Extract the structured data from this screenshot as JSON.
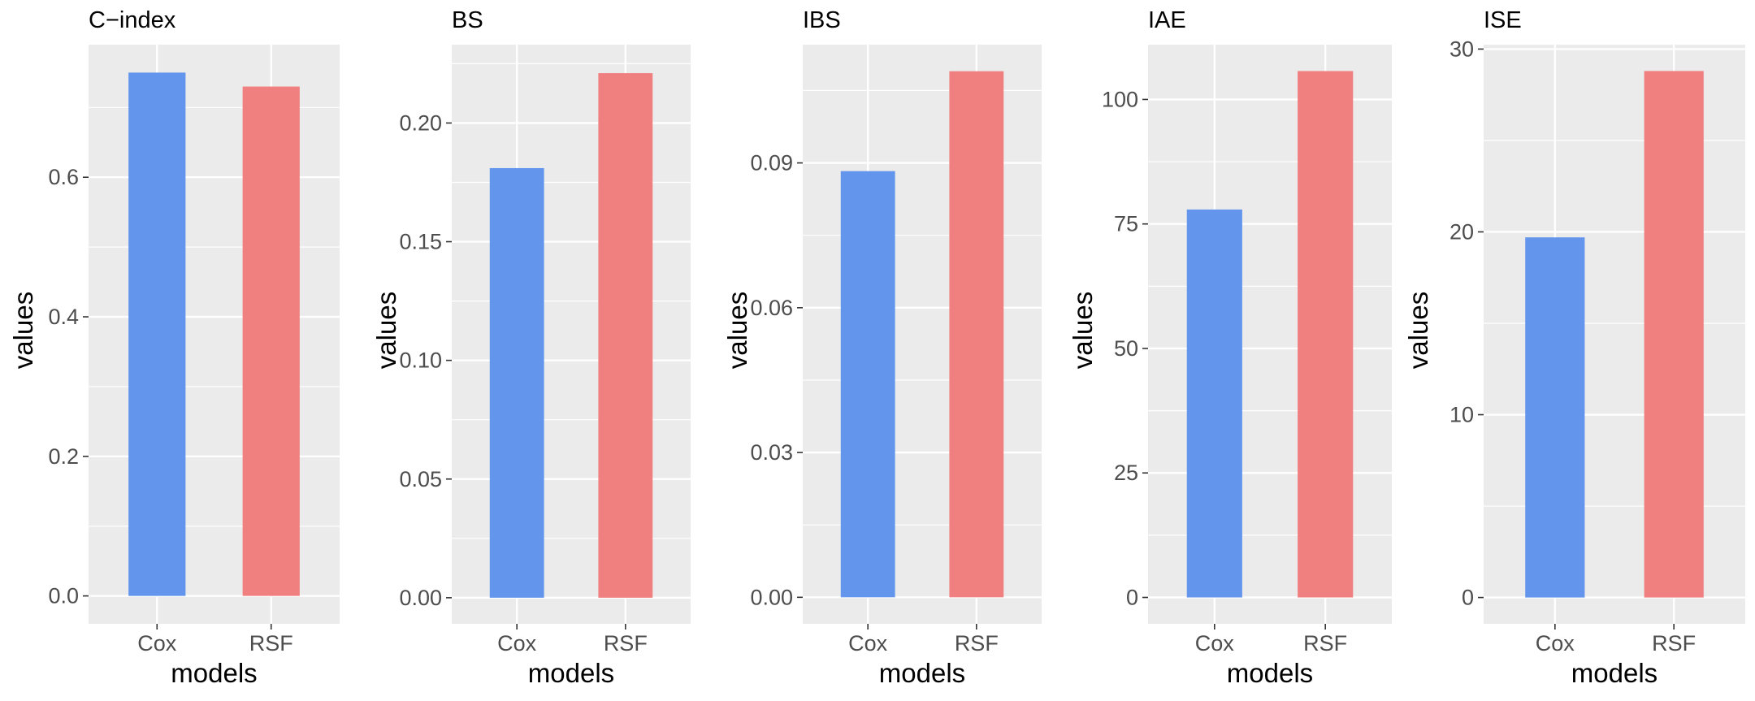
{
  "chart_data": [
    {
      "type": "bar",
      "title": "C−index",
      "xlabel": "models",
      "ylabel": "values",
      "categories": [
        "Cox",
        "RSF"
      ],
      "values": [
        0.75,
        0.73
      ],
      "colors": [
        "#6495ED",
        "#F08080"
      ],
      "ylim": [
        -0.04,
        0.79
      ],
      "yticks": [
        0.0,
        0.2,
        0.4,
        0.6
      ],
      "ytick_labels": [
        "0.0",
        "0.2",
        "0.4",
        "0.6"
      ],
      "grid": true
    },
    {
      "type": "bar",
      "title": "BS",
      "xlabel": "models",
      "ylabel": "values",
      "categories": [
        "Cox",
        "RSF"
      ],
      "values": [
        0.181,
        0.221
      ],
      "colors": [
        "#6495ED",
        "#F08080"
      ],
      "ylim": [
        -0.011,
        0.233
      ],
      "yticks": [
        0.0,
        0.05,
        0.1,
        0.15,
        0.2
      ],
      "ytick_labels": [
        "0.00",
        "0.05",
        "0.10",
        "0.15",
        "0.20"
      ],
      "grid": true
    },
    {
      "type": "bar",
      "title": "IBS",
      "xlabel": "models",
      "ylabel": "values",
      "categories": [
        "Cox",
        "RSF"
      ],
      "values": [
        0.0883,
        0.109
      ],
      "colors": [
        "#6495ED",
        "#F08080"
      ],
      "ylim": [
        -0.0055,
        0.1145
      ],
      "yticks": [
        0.0,
        0.03,
        0.06,
        0.09
      ],
      "ytick_labels": [
        "0.00",
        "0.03",
        "0.06",
        "0.09"
      ],
      "grid": true
    },
    {
      "type": "bar",
      "title": "IAE",
      "xlabel": "models",
      "ylabel": "values",
      "categories": [
        "Cox",
        "RSF"
      ],
      "values": [
        77.9,
        105.7
      ],
      "colors": [
        "#6495ED",
        "#F08080"
      ],
      "ylim": [
        -5.3,
        111.0
      ],
      "yticks": [
        0,
        25,
        50,
        75,
        100
      ],
      "ytick_labels": [
        "0",
        "25",
        "50",
        "75",
        "100"
      ],
      "grid": true
    },
    {
      "type": "bar",
      "title": "ISE",
      "xlabel": "models",
      "ylabel": "values",
      "categories": [
        "Cox",
        "RSF"
      ],
      "values": [
        19.7,
        28.8
      ],
      "colors": [
        "#6495ED",
        "#F08080"
      ],
      "ylim": [
        -1.44,
        30.24
      ],
      "yticks": [
        0,
        10,
        20,
        30
      ],
      "ytick_labels": [
        "0",
        "10",
        "20",
        "30"
      ],
      "grid": true
    }
  ]
}
